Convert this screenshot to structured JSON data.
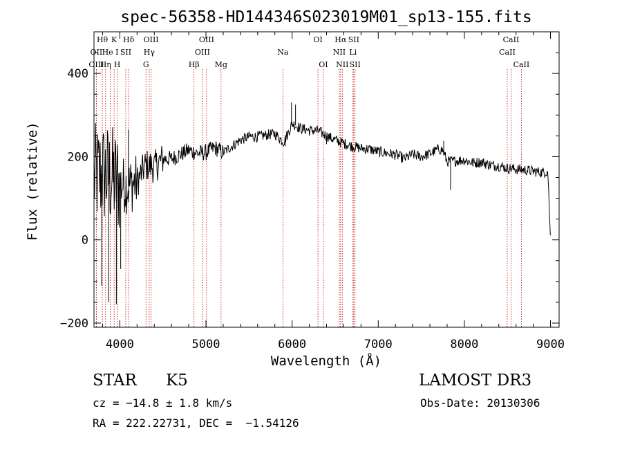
{
  "chart_data": {
    "type": "line",
    "title": "spec-56358-HD144346S023019M01_sp13-155.fits",
    "xlabel": "Wavelength (Å)",
    "ylabel": "Flux (relative)",
    "xlim": [
      3700,
      9100
    ],
    "ylim": [
      -210,
      500
    ],
    "x_ticks": [
      4000,
      5000,
      6000,
      7000,
      8000,
      9000
    ],
    "y_ticks": [
      -200,
      0,
      200,
      400
    ],
    "x_tick_labels": [
      "4000",
      "5000",
      "6000",
      "7000",
      "8000",
      "9000"
    ],
    "y_tick_labels": [
      "−200",
      "0",
      "200",
      "400"
    ],
    "series": [
      {
        "name": "flux",
        "continuum": [
          [
            3700,
            150
          ],
          [
            3800,
            160
          ],
          [
            3900,
            150
          ],
          [
            4000,
            135
          ],
          [
            4100,
            130
          ],
          [
            4200,
            140
          ],
          [
            4300,
            180
          ],
          [
            4400,
            175
          ],
          [
            4500,
            195
          ],
          [
            4600,
            195
          ],
          [
            4700,
            205
          ],
          [
            4800,
            215
          ],
          [
            4900,
            208
          ],
          [
            5000,
            210
          ],
          [
            5100,
            222
          ],
          [
            5200,
            210
          ],
          [
            5300,
            225
          ],
          [
            5400,
            240
          ],
          [
            5500,
            248
          ],
          [
            5600,
            248
          ],
          [
            5700,
            252
          ],
          [
            5800,
            255
          ],
          [
            5900,
            235
          ],
          [
            5950,
            255
          ],
          [
            6000,
            280
          ],
          [
            6100,
            268
          ],
          [
            6200,
            263
          ],
          [
            6300,
            262
          ],
          [
            6400,
            250
          ],
          [
            6500,
            240
          ],
          [
            6600,
            232
          ],
          [
            6700,
            225
          ],
          [
            6800,
            220
          ],
          [
            6900,
            218
          ],
          [
            7000,
            212
          ],
          [
            7100,
            208
          ],
          [
            7200,
            205
          ],
          [
            7300,
            195
          ],
          [
            7400,
            205
          ],
          [
            7500,
            200
          ],
          [
            7600,
            207
          ],
          [
            7700,
            218
          ],
          [
            7750,
            215
          ],
          [
            7800,
            188
          ],
          [
            7900,
            190
          ],
          [
            8000,
            192
          ],
          [
            8100,
            185
          ],
          [
            8200,
            187
          ],
          [
            8300,
            180
          ],
          [
            8400,
            178
          ],
          [
            8500,
            172
          ],
          [
            8600,
            170
          ],
          [
            8700,
            168
          ],
          [
            8800,
            165
          ],
          [
            8900,
            162
          ],
          [
            8970,
            165
          ],
          [
            9000,
            0
          ]
        ],
        "sharp_features": [
          [
            5993,
            330
          ],
          [
            6040,
            325
          ],
          [
            5920,
            225
          ],
          [
            6400,
            230
          ],
          [
            7760,
            238
          ],
          [
            7840,
            120
          ],
          [
            3960,
            -155
          ],
          [
            3870,
            -150
          ],
          [
            3790,
            -110
          ],
          [
            4010,
            -70
          ],
          [
            4100,
            265
          ]
        ]
      }
    ],
    "lines": [
      {
        "label": "OII",
        "x": 3727,
        "row": 1
      },
      {
        "label": "OIII",
        "x": 3727,
        "row": 2
      },
      {
        "label": "Hθ",
        "x": 3797,
        "row": 0
      },
      {
        "label": "Hη",
        "x": 3835,
        "row": 2
      },
      {
        "label": "He I",
        "x": 3889,
        "row": 1
      },
      {
        "label": "K",
        "x": 3934,
        "row": 0
      },
      {
        "label": "H",
        "x": 3969,
        "row": 2
      },
      {
        "label": "SII",
        "x": 4069,
        "row": 1
      },
      {
        "label": "Hδ",
        "x": 4102,
        "row": 0
      },
      {
        "label": "G",
        "x": 4304,
        "row": 2
      },
      {
        "label": "Hγ",
        "x": 4341,
        "row": 1
      },
      {
        "label": "OIII",
        "x": 4363,
        "row": 0
      },
      {
        "label": "Hβ",
        "x": 4861,
        "row": 2
      },
      {
        "label": "OIII",
        "x": 4959,
        "row": 1
      },
      {
        "label": "OIII",
        "x": 5007,
        "row": 0
      },
      {
        "label": "Mg",
        "x": 5175,
        "row": 2
      },
      {
        "label": "Na",
        "x": 5893,
        "row": 1
      },
      {
        "label": "OI",
        "x": 6300,
        "row": 0
      },
      {
        "label": "OI",
        "x": 6363,
        "row": 2
      },
      {
        "label": "NII",
        "x": 6548,
        "row": 1
      },
      {
        "label": "Hα",
        "x": 6563,
        "row": 0
      },
      {
        "label": "NII",
        "x": 6583,
        "row": 2
      },
      {
        "label": "Li",
        "x": 6707,
        "row": 1
      },
      {
        "label": "SII",
        "x": 6716,
        "row": 0
      },
      {
        "label": "SII",
        "x": 6731,
        "row": 2
      },
      {
        "label": "CaII",
        "x": 8498,
        "row": 1
      },
      {
        "label": "CaII",
        "x": 8542,
        "row": 0
      },
      {
        "label": "CaII",
        "x": 8662,
        "row": 2
      }
    ]
  },
  "info": {
    "class": "STAR",
    "subclass": "K5",
    "cz": "cz = −14.8 ± 1.8 km/s",
    "coords": "RA = 222.22731, DEC =  −1.54126",
    "survey": "LAMOST DR3",
    "obs_date": "Obs-Date: 20130306"
  }
}
